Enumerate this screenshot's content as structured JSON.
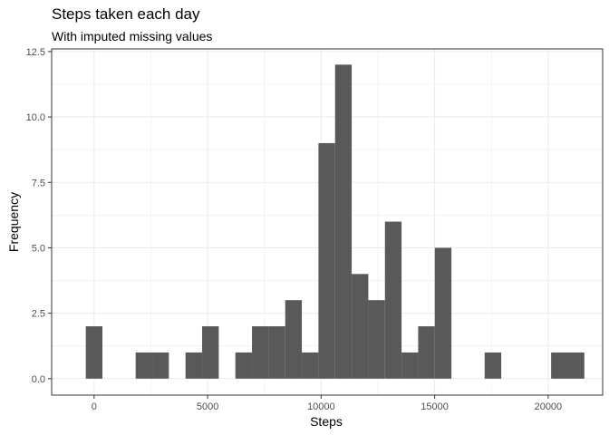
{
  "chart_data": {
    "type": "bar",
    "title": "Steps taken each day",
    "subtitle": "With imputed missing values",
    "xlabel": "Steps",
    "ylabel": "Frequency",
    "xlim": [
      -1870,
      22400
    ],
    "ylim": [
      -0.63,
      12.6
    ],
    "x_ticks": [
      0,
      5000,
      10000,
      15000,
      20000
    ],
    "y_ticks": [
      0.0,
      2.5,
      5.0,
      7.5,
      10.0,
      12.5
    ],
    "x_tick_labels": [
      "0",
      "5000",
      "10000",
      "15000",
      "20000"
    ],
    "y_tick_labels": [
      "0.0",
      "2.5",
      "5.0",
      "7.5",
      "10.0",
      "12.5"
    ],
    "bin_width": 732,
    "bin_centers": [
      0,
      732,
      1464,
      2196,
      2928,
      3660,
      4392,
      5124,
      5856,
      6588,
      7320,
      8052,
      8784,
      9516,
      10248,
      10980,
      11712,
      12444,
      13176,
      13908,
      14640,
      15372,
      16104,
      16836,
      17568,
      18300,
      19032,
      19764,
      20496,
      21228
    ],
    "values": [
      2,
      0,
      0,
      1,
      1,
      0,
      1,
      2,
      0,
      1,
      2,
      2,
      3,
      1,
      9,
      12,
      4,
      3,
      6,
      1,
      2,
      5,
      0,
      0,
      1,
      0,
      0,
      0,
      1,
      1
    ],
    "grid": true,
    "bar_color": "#595959",
    "grid_color": "#ebebeb",
    "panel_border_color": "#333333"
  }
}
